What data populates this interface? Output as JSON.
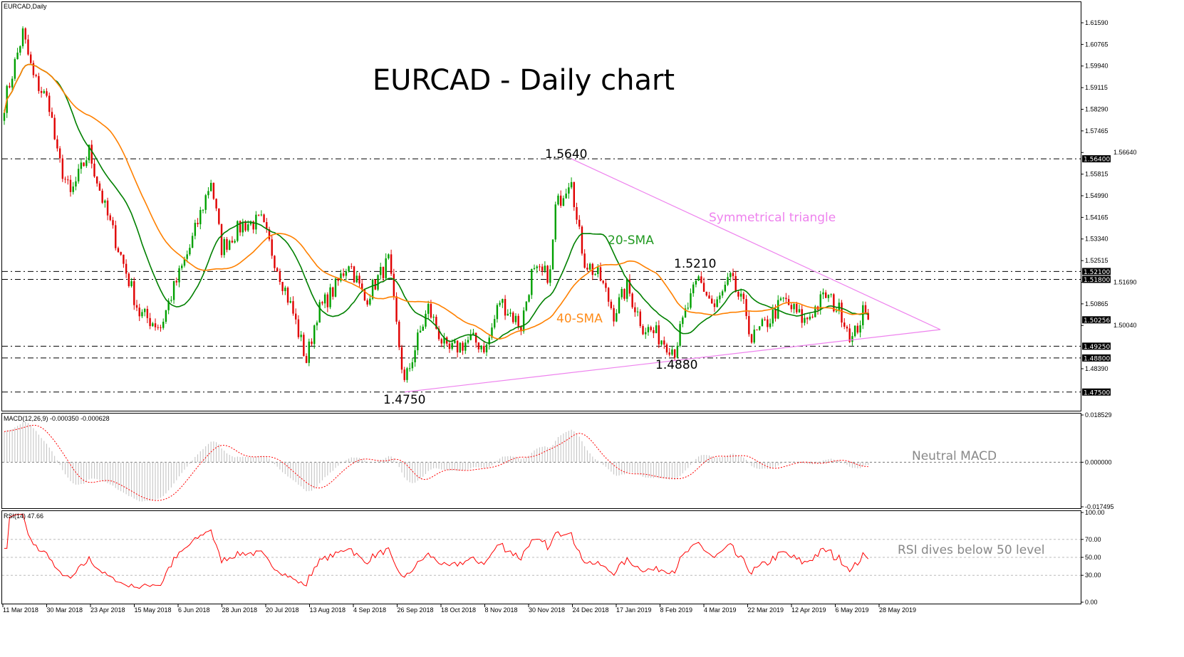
{
  "chart_data": {
    "type": "candlestick",
    "symbol_label": "EURCAD,Daily",
    "title": "EURCAD - Daily chart",
    "price_ticks": [
      "1.61590",
      "1.60765",
      "1.59940",
      "1.59115",
      "1.58290",
      "1.57465",
      "1.56640",
      "1.55815",
      "1.54990",
      "1.54165",
      "1.53340",
      "1.52515",
      "1.51690",
      "1.50865",
      "1.50040",
      "1.48390"
    ],
    "ylim": [
      1.4715,
      1.624
    ],
    "date_ticks": [
      "11 Mar 2018",
      "30 Mar 2018",
      "23 Apr 2018",
      "15 May 2018",
      "6 Jun 2018",
      "28 Jun 2018",
      "20 Jul 2018",
      "13 Aug 2018",
      "4 Sep 2018",
      "26 Sep 2018",
      "18 Oct 2018",
      "8 Nov 2018",
      "30 Nov 2018",
      "24 Dec 2018",
      "17 Jan 2019",
      "8 Feb 2019",
      "4 Mar 2019",
      "22 Mar 2019",
      "12 Apr 2019",
      "6 May 2019",
      "28 May 2019"
    ],
    "close_waypoints_bar_price": [
      [
        0,
        1.585
      ],
      [
        7,
        1.612
      ],
      [
        11,
        1.595
      ],
      [
        17,
        1.585
      ],
      [
        20,
        1.565
      ],
      [
        25,
        1.55
      ],
      [
        32,
        1.567
      ],
      [
        38,
        1.545
      ],
      [
        44,
        1.527
      ],
      [
        51,
        1.505
      ],
      [
        59,
        1.5
      ],
      [
        63,
        1.512
      ],
      [
        70,
        1.53
      ],
      [
        78,
        1.556
      ],
      [
        82,
        1.53
      ],
      [
        90,
        1.539
      ],
      [
        97,
        1.54
      ],
      [
        104,
        1.52
      ],
      [
        109,
        1.505
      ],
      [
        114,
        1.487
      ],
      [
        118,
        1.505
      ],
      [
        125,
        1.515
      ],
      [
        130,
        1.525
      ],
      [
        136,
        1.51
      ],
      [
        145,
        1.525
      ],
      [
        148,
        1.5
      ],
      [
        151,
        1.478
      ],
      [
        156,
        1.495
      ],
      [
        160,
        1.507
      ],
      [
        167,
        1.49
      ],
      [
        176,
        1.495
      ],
      [
        182,
        1.492
      ],
      [
        187,
        1.51
      ],
      [
        195,
        1.5
      ],
      [
        199,
        1.52
      ],
      [
        206,
        1.52
      ],
      [
        208,
        1.545
      ],
      [
        214,
        1.558
      ],
      [
        216,
        1.54
      ],
      [
        219,
        1.525
      ],
      [
        225,
        1.518
      ],
      [
        230,
        1.505
      ],
      [
        235,
        1.515
      ],
      [
        241,
        1.5
      ],
      [
        246,
        1.497
      ],
      [
        253,
        1.491
      ],
      [
        257,
        1.505
      ],
      [
        262,
        1.518
      ],
      [
        268,
        1.507
      ],
      [
        274,
        1.518
      ],
      [
        280,
        1.505
      ],
      [
        282,
        1.495
      ],
      [
        289,
        1.503
      ],
      [
        294,
        1.51
      ],
      [
        302,
        1.502
      ],
      [
        310,
        1.512
      ],
      [
        316,
        1.505
      ],
      [
        320,
        1.495
      ],
      [
        324,
        1.505
      ],
      [
        326,
        1.50256
      ]
    ],
    "last_price": "1.50256",
    "levels": [
      {
        "value": "1.56400",
        "label": "1.5640"
      },
      {
        "value": "1.52100",
        "label": "1.5210"
      },
      {
        "value": "1.51800",
        "label": ""
      },
      {
        "value": "1.49250",
        "label": ""
      },
      {
        "value": "1.48800",
        "label": "1.4880"
      },
      {
        "value": "1.47500",
        "label": "1.4750"
      }
    ],
    "annotations": {
      "triangle": "Symmetrical triangle",
      "sma20": "20-SMA",
      "sma40": "40-SMA",
      "macd_note": "Neutral MACD",
      "rsi_note": "RSI dives below 50 level"
    },
    "colors": {
      "bull": "#00a000",
      "bear": "#e00000",
      "sma20": "#008000",
      "sma40": "#ff8000",
      "triangle": "#ee82ee",
      "macd_hist": "#c0c0c0",
      "macd_signal": "#ff0000",
      "rsi": "#ff0000"
    },
    "macd": {
      "label": "MACD(12,26,9) -0.000350 -0.000628",
      "ticks": [
        "0.018529",
        "0.000000",
        "-0.017495"
      ],
      "ylim": [
        -0.017495,
        0.018529
      ]
    },
    "rsi": {
      "label": "RSI(14) 47.66",
      "ticks": [
        "100.00",
        "70.00",
        "50.00",
        "30.00",
        "0.00"
      ],
      "levels": [
        70,
        50,
        30
      ]
    }
  }
}
